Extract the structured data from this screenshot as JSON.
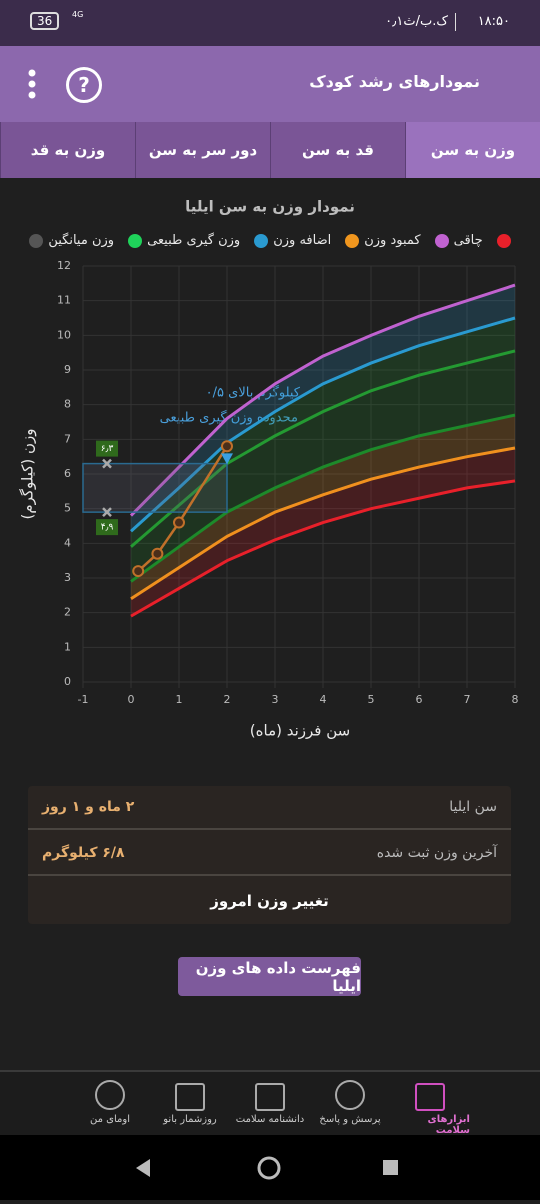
{
  "status_bar": {
    "time": "۱۸:۵۰",
    "speed": "۰٫۱ک.ب/ث",
    "network": "4G",
    "battery": "36"
  },
  "header": {
    "title": "نمودارهای رشد کودک",
    "help": "?"
  },
  "tabs": [
    "وزن به سن",
    "قد به سن",
    "دور سر به سن",
    "وزن به قد"
  ],
  "chart_data": {
    "type": "line",
    "title": "نمودار وزن به سن ایلیا",
    "x_label": "سن فرزند (ماه)",
    "y_label": "وزن (کیلوگرم)",
    "legend": [
      {
        "color": "#e8202a"
      },
      {
        "label": "چاقی",
        "color": "#c062d0"
      },
      {
        "label": "کمبود وزن",
        "color": "#f0961e"
      },
      {
        "label": "اضافه وزن",
        "color": "#2a9ad0"
      },
      {
        "label": "وزن گیری طبیعی",
        "color": "#1fd25a"
      },
      {
        "label": "وزن میانگین",
        "color": "#555555"
      }
    ],
    "x": [
      0,
      1,
      2,
      3,
      4,
      5,
      6,
      7,
      8
    ],
    "series": [
      {
        "color": "#e8202a",
        "values": [
          1.9,
          2.7,
          3.5,
          4.1,
          4.6,
          5.0,
          5.3,
          5.6,
          5.8
        ]
      },
      {
        "color": "#f0901e",
        "values": [
          2.4,
          3.3,
          4.2,
          4.9,
          5.4,
          5.85,
          6.2,
          6.5,
          6.75
        ]
      },
      {
        "color": "#1d8a2a",
        "values": [
          2.9,
          3.9,
          4.9,
          5.6,
          6.2,
          6.7,
          7.1,
          7.4,
          7.7
        ]
      },
      {
        "color": "#249a32",
        "values": [
          3.9,
          5.1,
          6.3,
          7.1,
          7.8,
          8.4,
          8.85,
          9.2,
          9.55
        ]
      },
      {
        "color": "#2a9ad0",
        "values": [
          4.35,
          5.6,
          6.9,
          7.8,
          8.6,
          9.2,
          9.7,
          10.1,
          10.5
        ]
      },
      {
        "color": "#c062d0",
        "values": [
          4.8,
          6.2,
          7.6,
          8.6,
          9.4,
          10.0,
          10.55,
          11.0,
          11.45
        ]
      }
    ],
    "child": {
      "color": "#c0702a",
      "x": [
        0.15,
        0.55,
        1.0,
        2.0
      ],
      "values": [
        3.2,
        3.7,
        4.6,
        6.8
      ]
    },
    "current_marker": {
      "x": 2,
      "value": 6.45,
      "color": "#3aa0e0"
    },
    "normal_range": {
      "xlim": [
        -1,
        2
      ],
      "marker_x": -0.5,
      "bounds": [
        {
          "value": 6.3,
          "label": "۶٫۳"
        },
        {
          "value": 4.9,
          "label": "۴٫۹"
        }
      ]
    },
    "annotations": [
      "۰/۵ کیلوگرم بالای",
      "محدوده وزن گیری طبیعی"
    ],
    "xlim": [
      -1,
      8
    ],
    "xticks": [
      -1,
      0,
      1,
      2,
      3,
      4,
      5,
      6,
      7,
      8
    ],
    "ylim": [
      0,
      12
    ],
    "yticks": [
      0,
      1,
      2,
      3,
      4,
      5,
      6,
      7,
      8,
      9,
      10,
      11,
      12
    ],
    "grid": true
  },
  "info": {
    "rows": [
      [
        "سن ایلیا",
        "۲ ماه و ۱ روز"
      ],
      [
        "آخرین وزن ثبت شده",
        "۶/۸ کیلوگرم"
      ]
    ],
    "action": "تغییر وزن امروز"
  },
  "list_button": "فهرست داده های وزن ایلیا",
  "bottom_nav": [
    "ابزارهای سلامت",
    "پرسش و پاسخ",
    "دانشنامه سلامت",
    "روزشمار بانو",
    "اومای من"
  ]
}
